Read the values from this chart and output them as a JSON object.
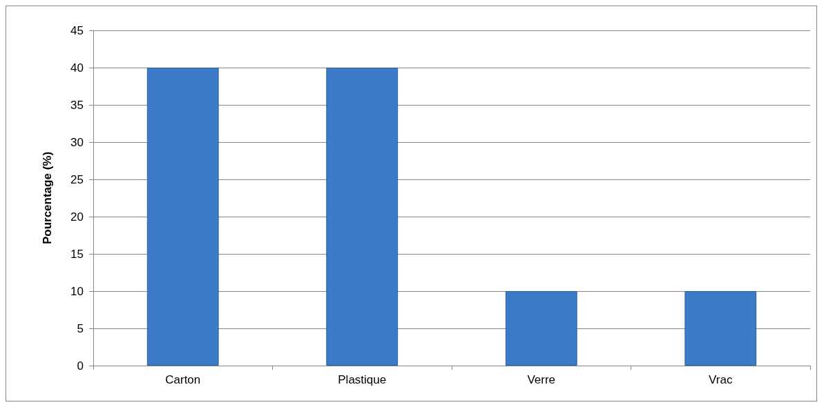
{
  "chart_data": {
    "type": "bar",
    "ylabel": "Pourcentage (%)",
    "categories": [
      "Carton",
      "Plastique",
      "Verre",
      "Vrac"
    ],
    "values": [
      40,
      40,
      10,
      10
    ],
    "color": "#3b7bc8",
    "ylim": [
      0,
      45
    ],
    "yticks": [
      0,
      5,
      10,
      15,
      20,
      25,
      30,
      35,
      40,
      45
    ],
    "grid": "y"
  }
}
